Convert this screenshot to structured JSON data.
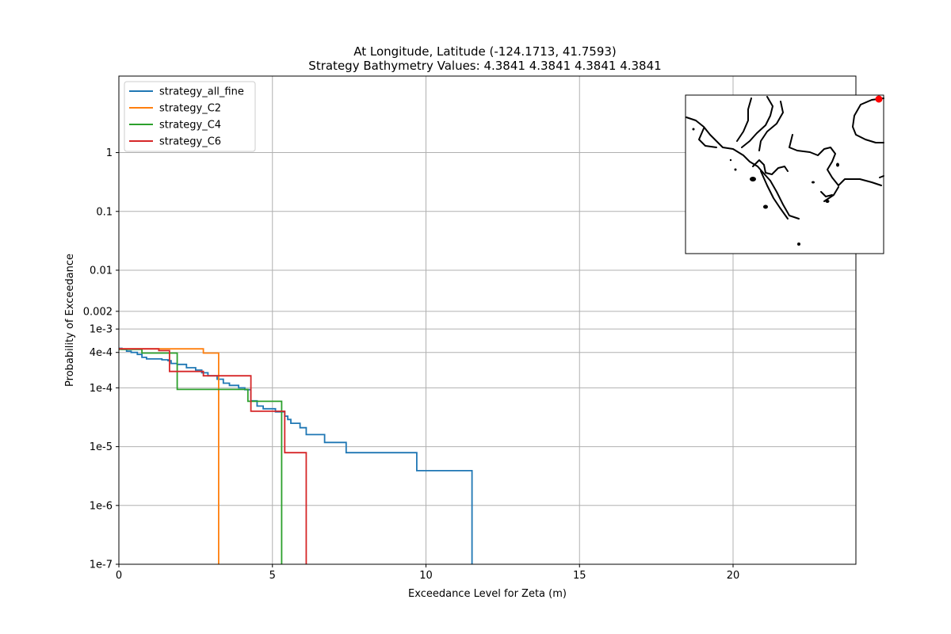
{
  "chart_data": {
    "type": "line",
    "title_line1": "At Longitude, Latitude (-124.1713,  41.7593)",
    "title_line2": "Strategy Bathymetry Values:    4.3841    4.3841    4.3841    4.3841",
    "xlabel": "Exceedance Level for Zeta (m)",
    "ylabel": "Probability of Exceedance",
    "xlim": [
      0,
      24
    ],
    "yscale": "log",
    "ylim": [
      1e-07,
      20
    ],
    "grid": true,
    "legend_position": "top-left",
    "x_ticks": [
      {
        "v": 0,
        "label": "0"
      },
      {
        "v": 5,
        "label": "5"
      },
      {
        "v": 10,
        "label": "10"
      },
      {
        "v": 15,
        "label": "15"
      },
      {
        "v": 20,
        "label": "20"
      }
    ],
    "y_ticks": [
      {
        "v": 1,
        "label": "1"
      },
      {
        "v": 0.1,
        "label": "0.1"
      },
      {
        "v": 0.01,
        "label": "0.01"
      },
      {
        "v": 0.002,
        "label": "0.002"
      },
      {
        "v": 0.001,
        "label": "1e-3"
      },
      {
        "v": 0.0004,
        "label": "4e-4"
      },
      {
        "v": 0.0001,
        "label": "1e-4"
      },
      {
        "v": 1e-05,
        "label": "1e-5"
      },
      {
        "v": 1e-06,
        "label": "1e-6"
      },
      {
        "v": 1e-07,
        "label": "1e-7"
      }
    ],
    "series": [
      {
        "name": "strategy_all_fine",
        "color": "#1f77b4",
        "points": [
          [
            0,
            0.00047
          ],
          [
            0.1,
            0.00045
          ],
          [
            0.25,
            0.00042
          ],
          [
            0.4,
            0.0004
          ],
          [
            0.6,
            0.00037
          ],
          [
            0.75,
            0.00033
          ],
          [
            0.9,
            0.00031
          ],
          [
            1.4,
            0.0003
          ],
          [
            1.6,
            0.00029
          ],
          [
            1.7,
            0.00026
          ],
          [
            1.9,
            0.00025
          ],
          [
            2.2,
            0.00022
          ],
          [
            2.5,
            0.0002
          ],
          [
            2.7,
            0.00018
          ],
          [
            2.9,
            0.00016
          ],
          [
            3.2,
            0.00014
          ],
          [
            3.4,
            0.00012
          ],
          [
            3.6,
            0.00011
          ],
          [
            3.9,
            0.0001
          ],
          [
            4.1,
            9.3e-05
          ],
          [
            4.3,
            6e-05
          ],
          [
            4.5,
            4.9e-05
          ],
          [
            4.7,
            4.4e-05
          ],
          [
            5.1,
            3.9e-05
          ],
          [
            5.4,
            3.3e-05
          ],
          [
            5.5,
            2.9e-05
          ],
          [
            5.6,
            2.5e-05
          ],
          [
            5.9,
            2.1e-05
          ],
          [
            6.1,
            1.6e-05
          ],
          [
            6.7,
            1.18e-05
          ],
          [
            7.4,
            7.9e-06
          ],
          [
            9.7,
            3.9e-06
          ],
          [
            11.5,
            3.9e-06
          ],
          [
            11.5,
            1e-07
          ]
        ]
      },
      {
        "name": "strategy_C2",
        "color": "#ff7f0e",
        "points": [
          [
            0,
            0.00046
          ],
          [
            2.75,
            0.00046
          ],
          [
            2.75,
            0.00039
          ],
          [
            3.25,
            0.00039
          ],
          [
            3.25,
            1e-07
          ]
        ]
      },
      {
        "name": "strategy_C4",
        "color": "#2ca02c",
        "points": [
          [
            0,
            0.00045
          ],
          [
            0.75,
            0.00045
          ],
          [
            0.75,
            0.00039
          ],
          [
            1.9,
            0.00039
          ],
          [
            1.9,
            9.4e-05
          ],
          [
            4.2,
            9.4e-05
          ],
          [
            4.2,
            5.9e-05
          ],
          [
            5.3,
            5.9e-05
          ],
          [
            5.3,
            1e-07
          ]
        ]
      },
      {
        "name": "strategy_C6",
        "color": "#d62728",
        "points": [
          [
            0,
            0.00046
          ],
          [
            1.3,
            0.00046
          ],
          [
            1.3,
            0.00043
          ],
          [
            1.65,
            0.00043
          ],
          [
            1.65,
            0.00019
          ],
          [
            2.75,
            0.00019
          ],
          [
            2.75,
            0.00016
          ],
          [
            4.3,
            0.00016
          ],
          [
            4.3,
            4e-05
          ],
          [
            5.4,
            4e-05
          ],
          [
            5.4,
            7.9e-06
          ],
          [
            6.1,
            7.9e-06
          ],
          [
            6.1,
            1e-07
          ]
        ]
      }
    ]
  },
  "inset_map": {
    "marker_color": "#ff0000"
  }
}
